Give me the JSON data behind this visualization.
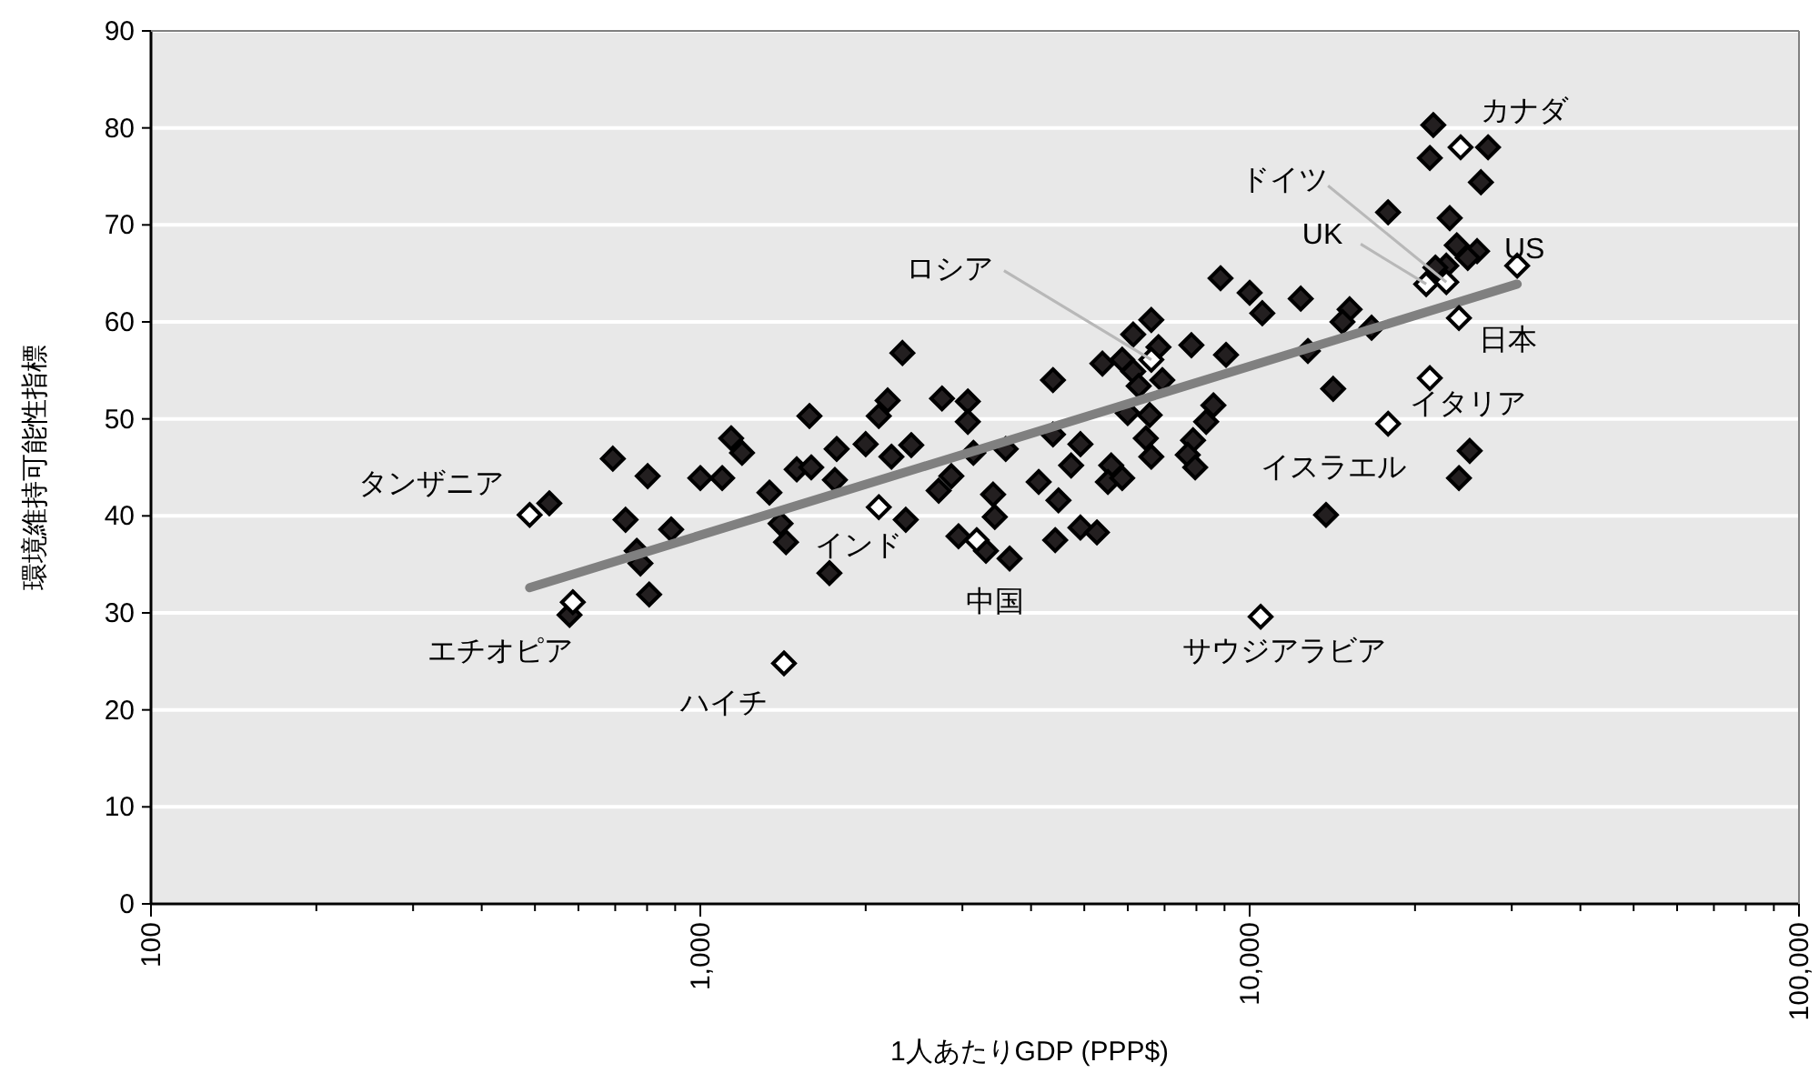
{
  "chart_data": {
    "type": "scatter",
    "xlabel": "1人あたりGDP (PPP$)",
    "ylabel": "環境維持可能性指標",
    "log": "x",
    "grid": "y",
    "marker": "diamond",
    "xlim": [
      100,
      100000
    ],
    "xticks": [
      {
        "value": 100,
        "label": "100"
      },
      {
        "value": 1000,
        "label": "1,000"
      },
      {
        "value": 10000,
        "label": "10,000"
      },
      {
        "value": 100000,
        "label": "100,000"
      }
    ],
    "ylim": [
      0,
      90
    ],
    "yticks": [
      0,
      10,
      20,
      30,
      40,
      50,
      60,
      70,
      80,
      90
    ],
    "series": [
      {
        "color": "#231f20",
        "x": [
          8851,
          10000,
          10544,
          12389,
          6622,
          6138,
          6823,
          7834,
          9057,
          5395,
          5861,
          6138,
          6934,
          6281,
          2333,
          4385,
          1580,
          1771,
          2000,
          2193,
          2113,
          2228,
          2421,
          2754,
          3069,
          3069,
          3141,
          3597,
          4385,
          4920,
          4732,
          5598,
          5520,
          5861,
          4130,
          4487,
          5998,
          6577,
          6471,
          6622,
          7888,
          7716,
          7959,
          8590,
          8334,
          12764,
          14191,
          13772,
          1758,
          2864,
          2716,
          3412,
          3436,
          2366,
          2951,
          3311,
          3656,
          4426,
          4920,
          5272,
          1718,
          531,
          693,
          802,
          731,
          766,
          778,
          807,
          885,
          578,
          1000,
          1096,
          1138,
          1191,
          1336,
          1400,
          1432,
          1498,
          1592,
          21590,
          21281,
          27164,
          26363,
          17865,
          23134,
          23823,
          25942,
          24946,
          22803,
          21782,
          15205,
          14757,
          16672,
          25154,
          24044
        ],
        "values": [
          64.5,
          63.0,
          60.9,
          62.4,
          60.2,
          58.7,
          57.4,
          57.6,
          56.6,
          55.7,
          56.1,
          54.9,
          54.0,
          53.4,
          56.8,
          54.0,
          50.3,
          46.9,
          47.4,
          51.9,
          50.3,
          46.1,
          47.3,
          52.1,
          51.8,
          49.7,
          46.5,
          46.9,
          48.4,
          47.4,
          45.2,
          45.2,
          43.5,
          43.9,
          43.5,
          41.6,
          50.6,
          50.4,
          48.0,
          46.1,
          47.8,
          46.3,
          45.0,
          51.4,
          49.7,
          57.0,
          53.1,
          40.1,
          43.7,
          44.1,
          42.6,
          42.2,
          39.9,
          39.6,
          37.9,
          36.4,
          35.6,
          37.5,
          38.8,
          38.3,
          34.1,
          41.3,
          45.9,
          44.1,
          39.6,
          36.4,
          35.1,
          31.9,
          38.6,
          29.8,
          43.9,
          43.9,
          48.0,
          46.5,
          42.4,
          39.2,
          37.3,
          44.8,
          45.0,
          80.3,
          76.9,
          78.0,
          74.4,
          71.3,
          70.7,
          67.9,
          67.3,
          66.6,
          65.8,
          65.6,
          61.3,
          60.0,
          59.4,
          46.7,
          43.9
        ]
      },
      {
        "type": "line",
        "marker": "none",
        "color": "#808080",
        "x": [
          489,
          30690
        ],
        "values": [
          32.6,
          63.9
        ]
      },
      {
        "color": "#ffffff",
        "x": [
          489,
          586,
          1420,
          2113,
          3185,
          6622,
          10471,
          17865,
          21281,
          24044,
          30690,
          20958,
          22803,
          24210
        ],
        "values": [
          40.1,
          31.1,
          24.8,
          40.9,
          37.5,
          56.1,
          29.6,
          49.5,
          54.2,
          60.4,
          65.8,
          63.9,
          64.1,
          78.0
        ]
      }
    ],
    "annotations": [
      {
        "text": "タンザニア",
        "x": 489,
        "y": 40.1
      },
      {
        "text": "エチオピア",
        "x": 586,
        "y": 31.1
      },
      {
        "text": "ハイチ",
        "x": 1420,
        "y": 24.8
      },
      {
        "text": "インド",
        "x": 2113,
        "y": 40.9
      },
      {
        "text": "中国",
        "x": 3185,
        "y": 37.5
      },
      {
        "text": "ロシア",
        "x": 6622,
        "y": 56.1
      },
      {
        "text": "サウジアラビア",
        "x": 10471,
        "y": 29.6
      },
      {
        "text": "イスラエル",
        "x": 17865,
        "y": 49.5
      },
      {
        "text": "イタリア",
        "x": 21281,
        "y": 54.2
      },
      {
        "text": "日本",
        "x": 24044,
        "y": 60.4
      },
      {
        "text": "US",
        "x": 30690,
        "y": 65.8
      },
      {
        "text": "UK",
        "x": 20958,
        "y": 63.9
      },
      {
        "text": "ドイツ",
        "x": 22803,
        "y": 64.1
      },
      {
        "text": "カナダ",
        "x": 24210,
        "y": 78.0
      }
    ]
  }
}
